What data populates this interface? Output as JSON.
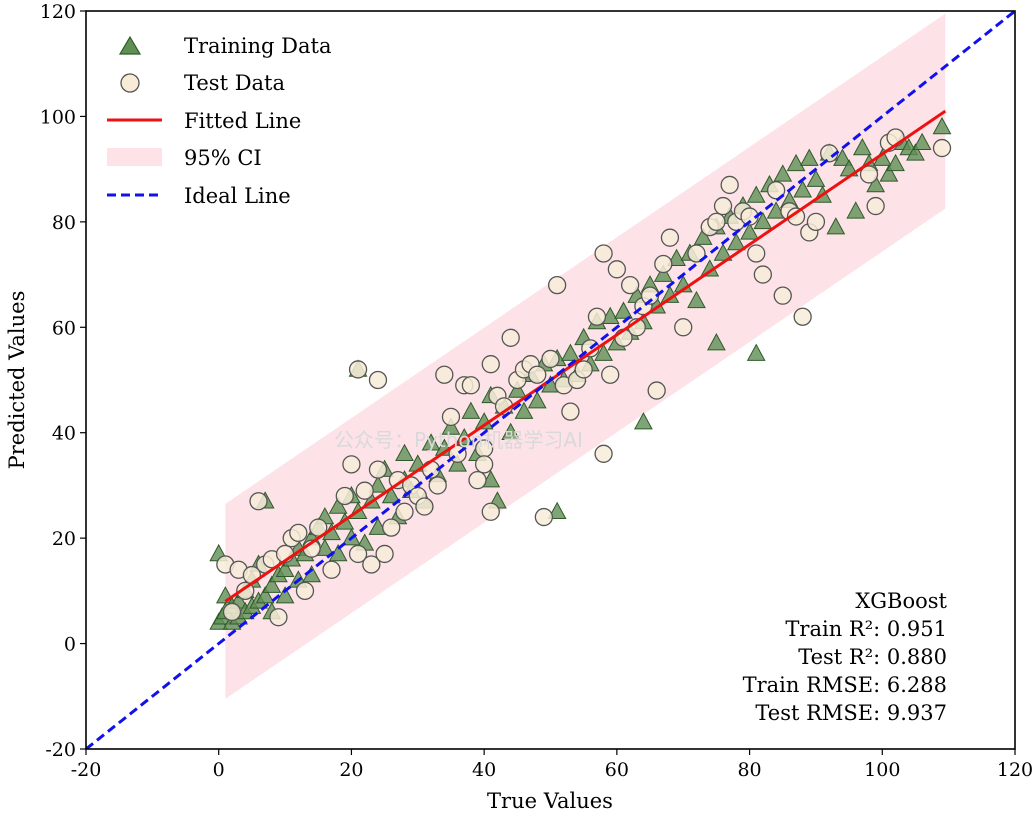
{
  "chart_data": {
    "type": "scatter",
    "xlabel": "True Values",
    "ylabel": "Predicted Values",
    "xlim": [
      -20,
      120
    ],
    "ylim": [
      -20,
      120
    ],
    "xticks": [
      -20,
      0,
      20,
      40,
      60,
      80,
      100,
      120
    ],
    "yticks": [
      -20,
      0,
      20,
      40,
      60,
      80,
      100,
      120
    ],
    "x_tick_labels": [
      "-20",
      "0",
      "20",
      "40",
      "60",
      "80",
      "100",
      "120"
    ],
    "y_tick_labels": [
      "-20",
      "0",
      "20",
      "40",
      "60",
      "80",
      "100",
      "120"
    ],
    "grid": false,
    "legend_position": "top-left",
    "legend": [
      "Training Data",
      "Test Data",
      "Fitted Line",
      "95% CI",
      "Ideal Line"
    ],
    "watermark": "公众号：Python机器学习AI",
    "colors": {
      "training": "#5f8f55",
      "training_edge": "#2f5a2a",
      "test": "#f8ecd8",
      "test_edge": "#555555",
      "fitted": "#ee1111",
      "ci": "#fde3e8",
      "ideal": "#1111ee"
    },
    "fitted_line": {
      "x": [
        1,
        109.5
      ],
      "y": [
        8,
        101
      ]
    },
    "ci_band": {
      "x": [
        1,
        109.5
      ],
      "upper": [
        26.5,
        119.5
      ],
      "lower": [
        -10.5,
        82.5
      ]
    },
    "ideal_line": {
      "x": [
        -20,
        120
      ],
      "y": [
        -20,
        120
      ]
    },
    "metrics": {
      "model": "XGBoost",
      "train_r2": "Train R²: 0.951",
      "test_r2": "Test R²: 0.880",
      "train_rmse": "Train RMSE: 6.288",
      "test_rmse": "Test RMSE: 9.937"
    },
    "series": [
      {
        "name": "Training Data",
        "marker": "triangle",
        "points": [
          [
            0,
            17
          ],
          [
            0,
            4
          ],
          [
            0.5,
            5
          ],
          [
            1,
            6
          ],
          [
            1,
            9
          ],
          [
            2,
            4
          ],
          [
            2,
            7
          ],
          [
            3,
            5
          ],
          [
            3,
            8
          ],
          [
            4,
            6
          ],
          [
            4,
            10
          ],
          [
            5,
            7
          ],
          [
            5,
            12
          ],
          [
            6,
            8
          ],
          [
            6,
            15
          ],
          [
            7,
            9
          ],
          [
            7,
            27
          ],
          [
            8,
            11
          ],
          [
            8,
            6
          ],
          [
            9,
            13
          ],
          [
            10,
            14
          ],
          [
            10,
            9
          ],
          [
            11,
            16
          ],
          [
            12,
            12
          ],
          [
            12,
            18
          ],
          [
            13,
            17
          ],
          [
            14,
            20
          ],
          [
            14,
            13
          ],
          [
            15,
            22
          ],
          [
            16,
            18
          ],
          [
            16,
            24
          ],
          [
            17,
            21
          ],
          [
            18,
            17
          ],
          [
            18,
            26
          ],
          [
            19,
            23
          ],
          [
            20,
            20
          ],
          [
            20,
            28
          ],
          [
            21,
            52
          ],
          [
            21,
            25
          ],
          [
            22,
            19
          ],
          [
            23,
            27
          ],
          [
            24,
            30
          ],
          [
            24,
            22
          ],
          [
            25,
            33
          ],
          [
            26,
            28
          ],
          [
            27,
            24
          ],
          [
            28,
            31
          ],
          [
            28,
            36
          ],
          [
            29,
            29
          ],
          [
            30,
            34
          ],
          [
            31,
            27
          ],
          [
            32,
            38
          ],
          [
            33,
            32
          ],
          [
            34,
            37
          ],
          [
            35,
            41
          ],
          [
            36,
            34
          ],
          [
            37,
            39
          ],
          [
            38,
            44
          ],
          [
            39,
            36
          ],
          [
            40,
            42
          ],
          [
            41,
            31
          ],
          [
            41,
            47
          ],
          [
            42,
            27
          ],
          [
            43,
            45
          ],
          [
            44,
            40
          ],
          [
            45,
            48
          ],
          [
            46,
            44
          ],
          [
            47,
            51
          ],
          [
            48,
            46
          ],
          [
            49,
            53
          ],
          [
            50,
            49
          ],
          [
            51,
            25
          ],
          [
            51,
            54
          ],
          [
            52,
            50
          ],
          [
            53,
            55
          ],
          [
            54,
            51
          ],
          [
            55,
            58
          ],
          [
            56,
            53
          ],
          [
            57,
            61
          ],
          [
            58,
            55
          ],
          [
            59,
            62
          ],
          [
            60,
            57
          ],
          [
            61,
            63
          ],
          [
            62,
            59
          ],
          [
            63,
            66
          ],
          [
            64,
            42
          ],
          [
            64,
            61
          ],
          [
            65,
            68
          ],
          [
            66,
            64
          ],
          [
            67,
            70
          ],
          [
            68,
            66
          ],
          [
            69,
            73
          ],
          [
            70,
            68
          ],
          [
            71,
            74
          ],
          [
            72,
            65
          ],
          [
            73,
            77
          ],
          [
            74,
            71
          ],
          [
            75,
            57
          ],
          [
            75,
            79
          ],
          [
            76,
            74
          ],
          [
            77,
            81
          ],
          [
            78,
            76
          ],
          [
            79,
            83
          ],
          [
            80,
            78
          ],
          [
            81,
            55
          ],
          [
            81,
            85
          ],
          [
            82,
            80
          ],
          [
            83,
            87
          ],
          [
            84,
            82
          ],
          [
            85,
            89
          ],
          [
            86,
            84
          ],
          [
            87,
            91
          ],
          [
            88,
            86
          ],
          [
            89,
            92
          ],
          [
            90,
            88
          ],
          [
            91,
            85
          ],
          [
            92,
            93
          ],
          [
            93,
            79
          ],
          [
            94,
            92
          ],
          [
            95,
            90
          ],
          [
            96,
            82
          ],
          [
            97,
            94
          ],
          [
            98,
            91
          ],
          [
            99,
            87
          ],
          [
            100,
            92
          ],
          [
            101,
            89
          ],
          [
            102,
            91
          ],
          [
            103,
            95
          ],
          [
            104,
            94
          ],
          [
            105,
            93
          ],
          [
            106,
            95
          ],
          [
            109,
            98
          ]
        ]
      },
      {
        "name": "Test Data",
        "marker": "circle",
        "points": [
          [
            1,
            15
          ],
          [
            2,
            6
          ],
          [
            3,
            14
          ],
          [
            4,
            10
          ],
          [
            5,
            13
          ],
          [
            6,
            27
          ],
          [
            7,
            15
          ],
          [
            8,
            16
          ],
          [
            9,
            5
          ],
          [
            10,
            17
          ],
          [
            11,
            20
          ],
          [
            12,
            21
          ],
          [
            13,
            10
          ],
          [
            14,
            18
          ],
          [
            15,
            22
          ],
          [
            17,
            14
          ],
          [
            19,
            28
          ],
          [
            20,
            34
          ],
          [
            21,
            17
          ],
          [
            21,
            52
          ],
          [
            22,
            29
          ],
          [
            23,
            15
          ],
          [
            24,
            33
          ],
          [
            24,
            50
          ],
          [
            25,
            17
          ],
          [
            26,
            22
          ],
          [
            27,
            31
          ],
          [
            28,
            25
          ],
          [
            29,
            30
          ],
          [
            30,
            28
          ],
          [
            31,
            26
          ],
          [
            32,
            33
          ],
          [
            33,
            30
          ],
          [
            34,
            51
          ],
          [
            35,
            43
          ],
          [
            36,
            36
          ],
          [
            37,
            49
          ],
          [
            38,
            49
          ],
          [
            39,
            31
          ],
          [
            40,
            37
          ],
          [
            40,
            34
          ],
          [
            41,
            53
          ],
          [
            41,
            25
          ],
          [
            42,
            47
          ],
          [
            43,
            45
          ],
          [
            44,
            58
          ],
          [
            45,
            50
          ],
          [
            46,
            52
          ],
          [
            47,
            53
          ],
          [
            48,
            51
          ],
          [
            49,
            24
          ],
          [
            50,
            54
          ],
          [
            51,
            68
          ],
          [
            52,
            49
          ],
          [
            53,
            44
          ],
          [
            54,
            50
          ],
          [
            55,
            52
          ],
          [
            56,
            56
          ],
          [
            57,
            62
          ],
          [
            58,
            36
          ],
          [
            58,
            74
          ],
          [
            59,
            51
          ],
          [
            60,
            71
          ],
          [
            61,
            58
          ],
          [
            62,
            68
          ],
          [
            63,
            60
          ],
          [
            64,
            64
          ],
          [
            65,
            66
          ],
          [
            66,
            48
          ],
          [
            67,
            72
          ],
          [
            68,
            77
          ],
          [
            70,
            60
          ],
          [
            72,
            74
          ],
          [
            74,
            79
          ],
          [
            75,
            80
          ],
          [
            76,
            83
          ],
          [
            77,
            87
          ],
          [
            78,
            80
          ],
          [
            79,
            82
          ],
          [
            80,
            81
          ],
          [
            81,
            74
          ],
          [
            82,
            70
          ],
          [
            84,
            86
          ],
          [
            85,
            66
          ],
          [
            86,
            82
          ],
          [
            87,
            81
          ],
          [
            88,
            62
          ],
          [
            89,
            78
          ],
          [
            90,
            80
          ],
          [
            92,
            93
          ],
          [
            98,
            89
          ],
          [
            99,
            83
          ],
          [
            101,
            95
          ],
          [
            102,
            96
          ],
          [
            109,
            94
          ]
        ]
      }
    ]
  }
}
